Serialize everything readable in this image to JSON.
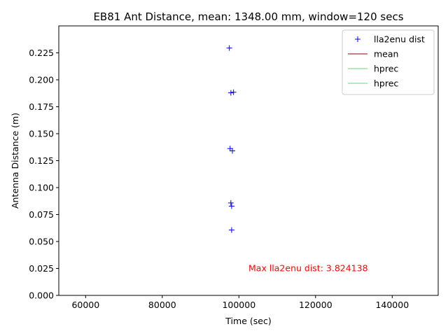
{
  "chart_data": {
    "type": "scatter",
    "title": "EB81 Ant Distance, mean: 1348.00 mm, window=120 secs",
    "xlabel": "Time (sec)",
    "ylabel": "Antenna Distance (m)",
    "xlim": [
      53000,
      152000
    ],
    "ylim": [
      0.0,
      0.25
    ],
    "xticks": [
      60000,
      80000,
      100000,
      120000,
      140000
    ],
    "xtick_labels": [
      "60000",
      "80000",
      "100000",
      "120000",
      "140000"
    ],
    "yticks": [
      0.0,
      0.025,
      0.05,
      0.075,
      0.1,
      0.125,
      0.15,
      0.175,
      0.2,
      0.225
    ],
    "ytick_labels": [
      "0.000",
      "0.025",
      "0.050",
      "0.075",
      "0.100",
      "0.125",
      "0.150",
      "0.175",
      "0.200",
      "0.225"
    ],
    "grid": false,
    "legend_position": "top-right",
    "series": [
      {
        "name": "lla2enu dist",
        "marker": "+",
        "color": "#0000ff",
        "points": [
          [
            97500,
            0.2295
          ],
          [
            97900,
            0.1879
          ],
          [
            98600,
            0.1885
          ],
          [
            97700,
            0.1362
          ],
          [
            98300,
            0.1341
          ],
          [
            97900,
            0.0858
          ],
          [
            98100,
            0.0828
          ],
          [
            98100,
            0.0606
          ]
        ]
      },
      {
        "name": "mean",
        "marker": "line",
        "color": "#8b0000",
        "points": []
      },
      {
        "name": "hprec",
        "marker": "line",
        "color": "#66dd66",
        "points": []
      },
      {
        "name": "hprec",
        "marker": "line",
        "color": "#66dd66",
        "points": []
      }
    ],
    "annotations": [
      {
        "text": "Max lla2enu dist: 3.824138",
        "color": "#ff0000",
        "x": 102500,
        "y": 0.0225
      }
    ]
  }
}
